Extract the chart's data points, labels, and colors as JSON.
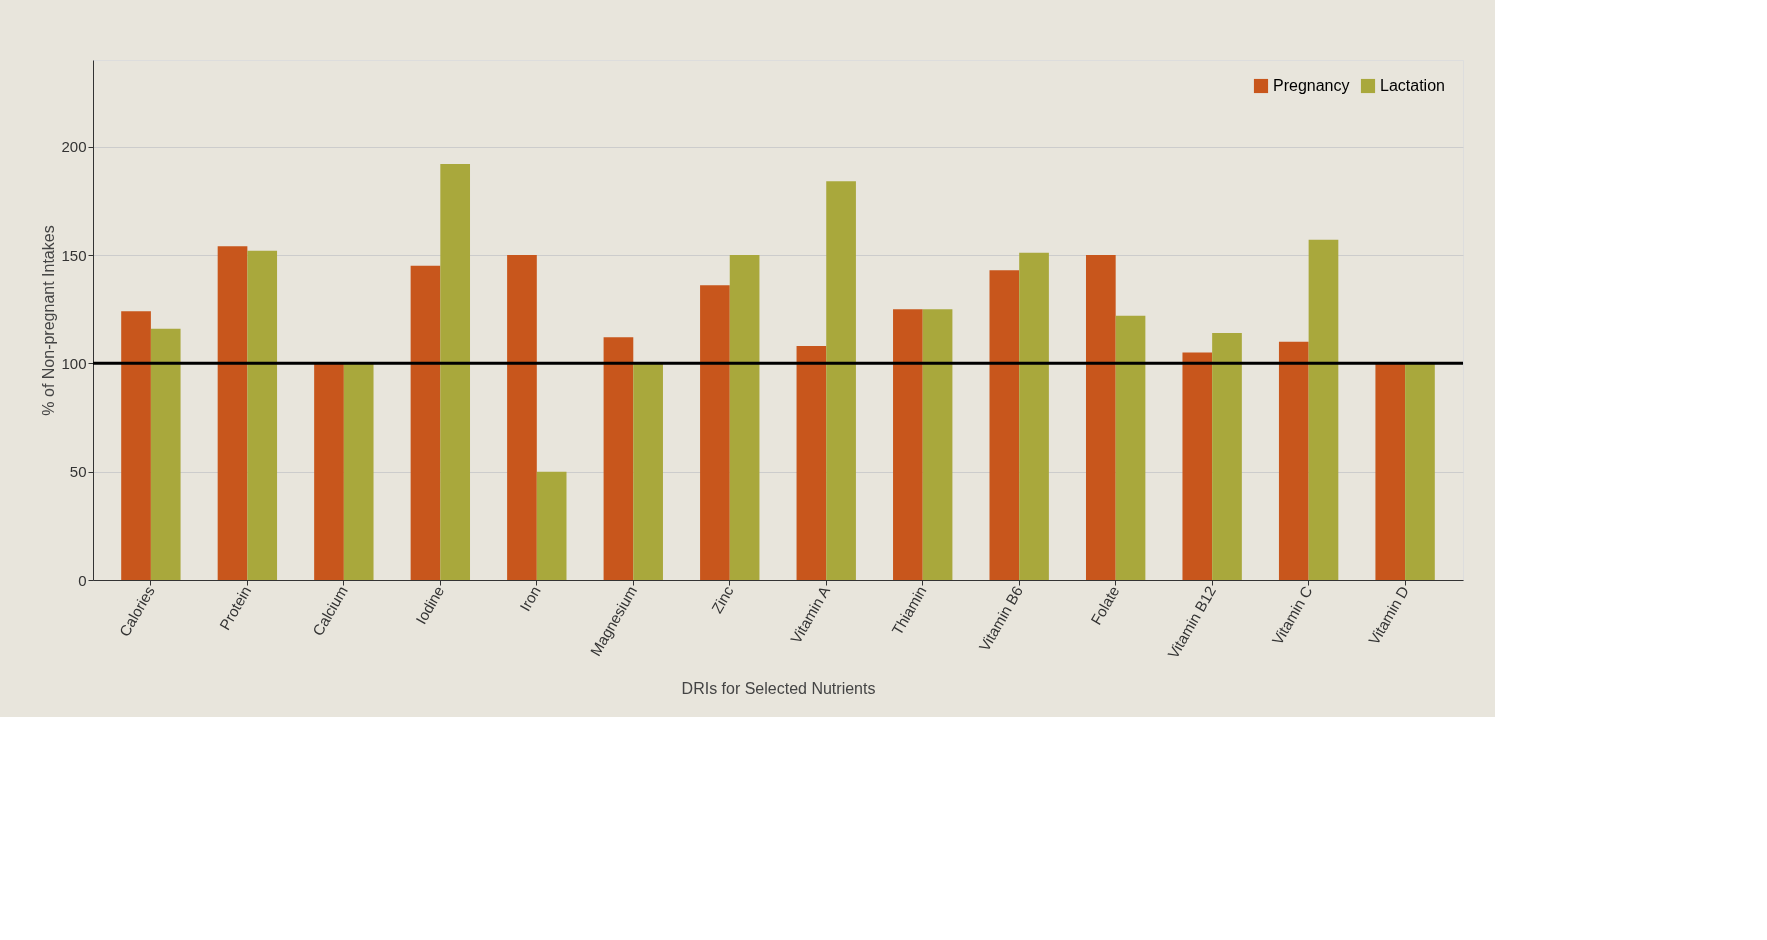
{
  "chart_data": {
    "type": "bar",
    "xlabel": "DRIs for Selected Nutrients",
    "ylabel": "% of Non-pregnant Intakes",
    "categories": [
      "Calories",
      "Protein",
      "Calcium",
      "Iodine",
      "Iron",
      "Magnesium",
      "Zinc",
      "Vitamin A",
      "Thiamin",
      "Vitamin B6",
      "Folate",
      "Vitamin B12",
      "Vitamin C",
      "Vitamin D"
    ],
    "series": [
      {
        "name": "Pregnancy",
        "color": "#c8561c",
        "values": [
          124,
          154,
          100,
          145,
          150,
          112,
          136,
          108,
          125,
          143,
          150,
          105,
          110,
          100
        ]
      },
      {
        "name": "Lactation",
        "color": "#a9a83c",
        "values": [
          116,
          152,
          100,
          192,
          50,
          100,
          150,
          184,
          125,
          151,
          122,
          114,
          157,
          100
        ]
      }
    ],
    "ylim": [
      0,
      240
    ],
    "yticks": [
      0,
      50,
      100,
      150,
      200
    ],
    "grid": "y",
    "legend": "top right",
    "ref_lines": [
      {
        "axis": "y",
        "value": 100,
        "color": "#000000"
      }
    ]
  }
}
